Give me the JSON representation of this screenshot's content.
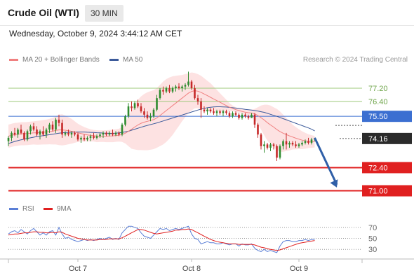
{
  "header": {
    "instrument": "Crude Oil (WTI)",
    "timeframe": "30 MIN"
  },
  "datetime": "Wednesday, October 9, 2024 3:44:12 AM CET",
  "legend": {
    "ma20": "MA 20 + Bollinger Bands",
    "ma50": "MA 50",
    "credit": "Research © 2024 Trading Central"
  },
  "rsi_legend": {
    "rsi": "RSI",
    "ma9": "9MA"
  },
  "colors": {
    "ma20": "#f08080",
    "ma50": "#3c5a9a",
    "bollinger_fill": "#fde2e2",
    "bull_candle": "#2e8b2e",
    "bear_candle": "#c62828",
    "resistance_line": "#9cc97a",
    "pivot_line": "#3b6fd1",
    "support_line": "#e02020",
    "price_box": "#2b2b2b",
    "arrow": "#2f5fa8",
    "rsi_line": "#5b7fd6",
    "rsi_ma": "#e02020"
  },
  "chart_data": [
    {
      "type": "line",
      "name": "price",
      "ylim": [
        70.6,
        78.3
      ],
      "xlim": [
        0,
        112
      ],
      "x_ticks": [
        {
          "label": "Oct 7",
          "x": 22
        },
        {
          "label": "Oct 8",
          "x": 58
        },
        {
          "label": "Oct 9",
          "x": 92
        }
      ],
      "levels": [
        {
          "label": "77.20",
          "value": 77.2,
          "kind": "resistance"
        },
        {
          "label": "76.40",
          "value": 76.4,
          "kind": "resistance"
        },
        {
          "label": "75.50",
          "value": 75.5,
          "kind": "pivot"
        },
        {
          "label": "74.16",
          "value": 74.16,
          "kind": "current"
        },
        {
          "label": "72.40",
          "value": 72.4,
          "kind": "support"
        },
        {
          "label": "71.00",
          "value": 71.0,
          "kind": "support"
        }
      ],
      "forecast_arrow": {
        "from_x": 97,
        "from_value": 74.2,
        "to_x": 104,
        "to_value": 71.2
      },
      "candles": [
        [
          74.0,
          74.3,
          73.7,
          74.2
        ],
        [
          74.2,
          74.6,
          74.0,
          74.5
        ],
        [
          74.5,
          74.8,
          74.3,
          74.4
        ],
        [
          74.4,
          74.8,
          74.2,
          74.7
        ],
        [
          74.7,
          75.0,
          74.4,
          74.5
        ],
        [
          74.5,
          74.6,
          74.0,
          74.1
        ],
        [
          74.1,
          74.7,
          74.0,
          74.6
        ],
        [
          74.6,
          75.0,
          74.4,
          74.9
        ],
        [
          74.9,
          75.1,
          74.6,
          74.7
        ],
        [
          74.7,
          74.9,
          74.3,
          74.4
        ],
        [
          74.4,
          74.7,
          74.1,
          74.6
        ],
        [
          74.6,
          74.9,
          74.3,
          74.4
        ],
        [
          74.4,
          74.8,
          74.2,
          74.7
        ],
        [
          74.7,
          75.1,
          74.5,
          75.0
        ],
        [
          75.0,
          75.2,
          74.6,
          74.7
        ],
        [
          74.7,
          75.4,
          74.5,
          75.3
        ],
        [
          75.3,
          75.6,
          74.9,
          75.1
        ],
        [
          75.1,
          75.3,
          74.2,
          74.4
        ],
        [
          74.4,
          74.6,
          74.3,
          74.5
        ],
        [
          74.5,
          74.7,
          74.3,
          74.4
        ],
        [
          74.4,
          74.6,
          74.2,
          74.5
        ],
        [
          74.5,
          74.6,
          74.3,
          74.4
        ],
        [
          74.4,
          74.5,
          74.0,
          74.1
        ],
        [
          74.1,
          74.3,
          73.9,
          74.2
        ],
        [
          74.2,
          74.4,
          74.0,
          74.1
        ],
        [
          74.1,
          74.3,
          74.0,
          74.2
        ],
        [
          74.2,
          74.4,
          74.0,
          74.3
        ],
        [
          74.3,
          74.5,
          74.1,
          74.2
        ],
        [
          74.2,
          74.4,
          74.1,
          74.3
        ],
        [
          74.3,
          74.5,
          74.2,
          74.4
        ],
        [
          74.4,
          74.6,
          74.2,
          74.5
        ],
        [
          74.5,
          74.6,
          74.3,
          74.4
        ],
        [
          74.4,
          74.6,
          74.3,
          74.5
        ],
        [
          74.5,
          74.7,
          74.3,
          74.4
        ],
        [
          74.4,
          74.6,
          74.3,
          74.5
        ],
        [
          74.5,
          74.6,
          74.3,
          74.4
        ],
        [
          74.4,
          75.1,
          74.3,
          75.0
        ],
        [
          75.0,
          75.6,
          74.9,
          75.5
        ],
        [
          75.5,
          76.3,
          75.4,
          76.1
        ],
        [
          76.1,
          76.4,
          75.8,
          76.0
        ],
        [
          76.0,
          76.4,
          75.9,
          76.3
        ],
        [
          76.3,
          76.5,
          76.0,
          76.1
        ],
        [
          76.1,
          76.3,
          75.7,
          75.8
        ],
        [
          75.8,
          76.0,
          75.4,
          75.6
        ],
        [
          75.6,
          75.8,
          75.3,
          75.4
        ],
        [
          75.4,
          75.7,
          75.2,
          75.5
        ],
        [
          75.5,
          76.0,
          75.4,
          75.9
        ],
        [
          75.9,
          76.8,
          75.8,
          76.6
        ],
        [
          76.6,
          77.2,
          76.5,
          77.1
        ],
        [
          77.1,
          77.3,
          76.8,
          77.0
        ],
        [
          77.0,
          77.3,
          76.9,
          77.2
        ],
        [
          77.2,
          77.4,
          76.9,
          77.0
        ],
        [
          77.0,
          77.3,
          76.9,
          77.2
        ],
        [
          77.2,
          77.4,
          77.0,
          77.3
        ],
        [
          77.3,
          77.5,
          77.1,
          77.2
        ],
        [
          77.2,
          77.4,
          77.0,
          77.3
        ],
        [
          77.3,
          77.5,
          77.1,
          77.4
        ],
        [
          77.4,
          78.2,
          77.3,
          77.6
        ],
        [
          77.6,
          77.7,
          77.1,
          77.2
        ],
        [
          77.2,
          77.4,
          76.5,
          76.6
        ],
        [
          76.6,
          76.8,
          76.2,
          76.4
        ],
        [
          76.4,
          76.6,
          75.4,
          75.9
        ],
        [
          75.9,
          76.1,
          75.7,
          75.8
        ],
        [
          75.8,
          76.0,
          75.6,
          75.9
        ],
        [
          75.9,
          76.0,
          75.7,
          75.8
        ],
        [
          75.8,
          76.0,
          75.6,
          75.7
        ],
        [
          75.7,
          75.9,
          75.5,
          75.8
        ],
        [
          75.8,
          75.9,
          75.6,
          75.7
        ],
        [
          75.7,
          75.9,
          75.5,
          75.8
        ],
        [
          75.8,
          75.9,
          75.6,
          75.7
        ],
        [
          75.7,
          75.8,
          75.4,
          75.5
        ],
        [
          75.5,
          75.8,
          75.4,
          75.7
        ],
        [
          75.7,
          75.8,
          75.5,
          75.6
        ],
        [
          75.6,
          75.7,
          75.3,
          75.4
        ],
        [
          75.4,
          75.7,
          75.3,
          75.6
        ],
        [
          75.6,
          75.7,
          75.4,
          75.5
        ],
        [
          75.5,
          75.6,
          75.3,
          75.4
        ],
        [
          75.4,
          75.7,
          75.4,
          75.6
        ],
        [
          75.6,
          75.7,
          74.8,
          75.0
        ],
        [
          75.0,
          75.1,
          74.2,
          74.4
        ],
        [
          74.4,
          74.5,
          73.5,
          73.7
        ],
        [
          73.7,
          74.0,
          73.3,
          73.8
        ],
        [
          73.8,
          73.9,
          73.5,
          73.6
        ],
        [
          73.6,
          73.9,
          73.4,
          73.8
        ],
        [
          73.8,
          73.9,
          73.5,
          73.7
        ],
        [
          73.7,
          73.8,
          72.8,
          73.0
        ],
        [
          73.0,
          73.8,
          72.9,
          73.7
        ],
        [
          73.7,
          74.1,
          73.5,
          74.0
        ],
        [
          74.0,
          74.5,
          73.5,
          73.8
        ],
        [
          73.8,
          74.0,
          73.6,
          73.9
        ],
        [
          73.9,
          74.0,
          73.7,
          73.8
        ],
        [
          73.8,
          74.0,
          73.6,
          73.7
        ],
        [
          73.7,
          73.9,
          73.6,
          73.8
        ],
        [
          73.8,
          74.0,
          73.7,
          73.9
        ],
        [
          73.9,
          74.1,
          73.8,
          74.0
        ],
        [
          74.0,
          74.2,
          73.8,
          73.9
        ],
        [
          73.9,
          74.2,
          73.8,
          74.1
        ],
        [
          74.1,
          74.2,
          74.0,
          74.16
        ]
      ],
      "ma20_series": [
        74.3,
        74.35,
        74.4,
        74.42,
        74.45,
        74.45,
        74.46,
        74.48,
        74.5,
        74.5,
        74.52,
        74.54,
        74.55,
        74.58,
        74.6,
        74.65,
        74.68,
        74.68,
        74.66,
        74.63,
        74.6,
        74.55,
        74.5,
        74.46,
        74.42,
        74.38,
        74.35,
        74.33,
        74.3,
        74.3,
        74.3,
        74.3,
        74.31,
        74.32,
        74.34,
        74.36,
        74.4,
        74.48,
        74.6,
        74.72,
        74.85,
        74.98,
        75.08,
        75.15,
        75.2,
        75.25,
        75.3,
        75.4,
        75.55,
        75.7,
        75.85,
        76.0,
        76.15,
        76.3,
        76.45,
        76.6,
        76.75,
        76.9,
        77.0,
        77.05,
        77.02,
        76.95,
        76.85,
        76.75,
        76.65,
        76.55,
        76.45,
        76.35,
        76.25,
        76.15,
        76.05,
        75.98,
        75.9,
        75.85,
        75.8,
        75.75,
        75.72,
        75.7,
        75.65,
        75.55,
        75.42,
        75.28,
        75.12,
        74.98,
        74.85,
        74.7,
        74.58,
        74.48,
        74.4,
        74.32,
        74.25,
        74.18,
        74.12,
        74.06,
        74.02,
        74.0,
        73.98,
        73.97
      ],
      "ma20_upper": [
        75.0,
        75.05,
        75.1,
        75.12,
        75.15,
        75.15,
        75.16,
        75.18,
        75.2,
        75.22,
        75.25,
        75.28,
        75.3,
        75.35,
        75.4,
        75.5,
        75.6,
        75.62,
        75.55,
        75.45,
        75.35,
        75.2,
        75.05,
        74.95,
        74.85,
        74.78,
        74.72,
        74.68,
        74.66,
        74.65,
        74.65,
        74.66,
        74.68,
        74.7,
        74.72,
        74.75,
        74.85,
        75.1,
        75.5,
        75.9,
        76.2,
        76.5,
        76.7,
        76.85,
        76.95,
        77.02,
        77.08,
        77.2,
        77.4,
        77.6,
        77.75,
        77.85,
        77.92,
        77.95,
        77.98,
        78.0,
        78.05,
        78.1,
        78.15,
        78.12,
        78.05,
        77.95,
        77.8,
        77.65,
        77.5,
        77.3,
        77.1,
        76.9,
        76.7,
        76.5,
        76.3,
        76.15,
        76.05,
        75.98,
        75.95,
        75.92,
        75.9,
        75.9,
        75.95,
        76.05,
        76.15,
        76.2,
        76.2,
        76.15,
        76.05,
        75.95,
        75.8,
        75.6,
        75.4,
        75.2,
        75.0,
        74.85,
        74.72,
        74.6,
        74.5,
        74.42,
        74.36,
        74.32
      ],
      "ma20_lower": [
        73.6,
        73.65,
        73.7,
        73.72,
        73.75,
        73.75,
        73.76,
        73.78,
        73.8,
        73.78,
        73.79,
        73.8,
        73.8,
        73.81,
        73.8,
        73.8,
        73.76,
        73.74,
        73.77,
        73.81,
        73.85,
        73.9,
        73.95,
        73.97,
        73.99,
        73.98,
        73.98,
        73.98,
        73.94,
        73.95,
        73.95,
        73.94,
        73.94,
        73.94,
        73.96,
        73.97,
        73.95,
        73.86,
        73.7,
        73.54,
        73.5,
        73.46,
        73.46,
        73.45,
        73.45,
        73.48,
        73.52,
        73.6,
        73.7,
        73.8,
        73.95,
        74.15,
        74.38,
        74.65,
        74.92,
        75.2,
        75.45,
        75.7,
        75.85,
        75.98,
        75.99,
        75.95,
        75.9,
        75.85,
        75.8,
        75.8,
        75.8,
        75.8,
        75.8,
        75.8,
        75.8,
        75.81,
        75.75,
        75.72,
        75.65,
        75.58,
        75.54,
        75.5,
        75.35,
        75.05,
        74.69,
        74.36,
        74.04,
        73.81,
        73.65,
        73.45,
        73.36,
        73.36,
        73.4,
        73.44,
        73.5,
        73.51,
        73.52,
        73.52,
        73.54,
        73.58,
        73.6,
        73.62
      ],
      "ma50_series": [
        73.85,
        73.92,
        73.98,
        74.03,
        74.08,
        74.12,
        74.16,
        74.2,
        74.24,
        74.28,
        74.3,
        74.33,
        74.36,
        74.39,
        74.42,
        74.45,
        74.48,
        74.5,
        74.52,
        74.53,
        74.54,
        74.55,
        74.55,
        74.55,
        74.55,
        74.54,
        74.53,
        74.52,
        74.51,
        74.5,
        74.49,
        74.48,
        74.47,
        74.47,
        74.48,
        74.5,
        74.52,
        74.56,
        74.6,
        74.66,
        74.72,
        74.78,
        74.84,
        74.9,
        74.95,
        75.0,
        75.05,
        75.1,
        75.16,
        75.22,
        75.28,
        75.34,
        75.4,
        75.46,
        75.52,
        75.58,
        75.64,
        75.7,
        75.76,
        75.82,
        75.88,
        75.93,
        75.98,
        76.02,
        76.05,
        76.07,
        76.08,
        76.08,
        76.07,
        76.06,
        76.04,
        76.02,
        76.0,
        75.98,
        75.95,
        75.92,
        75.9,
        75.88,
        75.85,
        75.82,
        75.78,
        75.74,
        75.68,
        75.62,
        75.56,
        75.5,
        75.43,
        75.36,
        75.29,
        75.22,
        75.15,
        75.08,
        75.01,
        74.94,
        74.87,
        74.8,
        74.72,
        74.62
      ]
    },
    {
      "type": "line",
      "name": "RSI",
      "ylim": [
        15,
        85
      ],
      "y_ticks": [
        70,
        50,
        30
      ],
      "rsi_series": [
        58,
        62,
        64,
        60,
        66,
        62,
        58,
        64,
        68,
        62,
        56,
        60,
        56,
        62,
        64,
        56,
        70,
        58,
        50,
        52,
        48,
        46,
        44,
        46,
        48,
        46,
        48,
        46,
        48,
        50,
        48,
        50,
        52,
        48,
        50,
        48,
        60,
        66,
        72,
        72,
        70,
        68,
        60,
        54,
        52,
        50,
        56,
        62,
        68,
        66,
        68,
        64,
        66,
        68,
        66,
        68,
        70,
        72,
        58,
        50,
        48,
        40,
        42,
        44,
        42,
        42,
        40,
        40,
        42,
        40,
        38,
        40,
        40,
        36,
        40,
        38,
        38,
        40,
        32,
        28,
        26,
        30,
        26,
        28,
        26,
        24,
        36,
        44,
        46,
        46,
        44,
        44,
        46,
        46,
        48,
        46,
        48,
        48
      ],
      "rsi_ma_series": [
        56,
        57,
        58,
        58,
        59,
        60,
        60,
        61,
        62,
        62,
        61,
        61,
        60,
        60,
        61,
        60,
        62,
        61,
        58,
        56,
        54,
        52,
        50,
        49,
        48,
        47,
        47,
        47,
        47,
        48,
        48,
        48,
        49,
        49,
        49,
        49,
        51,
        54,
        57,
        60,
        63,
        66,
        66,
        65,
        63,
        61,
        59,
        58,
        59,
        60,
        61,
        62,
        63,
        65,
        65,
        66,
        66,
        67,
        66,
        63,
        60,
        57,
        54,
        51,
        48,
        46,
        44,
        43,
        42,
        41,
        40,
        40,
        40,
        39,
        39,
        39,
        39,
        39,
        38,
        36,
        34,
        33,
        31,
        30,
        29,
        28,
        29,
        31,
        33,
        35,
        37,
        39,
        41,
        42,
        43,
        44,
        45,
        46
      ]
    }
  ]
}
